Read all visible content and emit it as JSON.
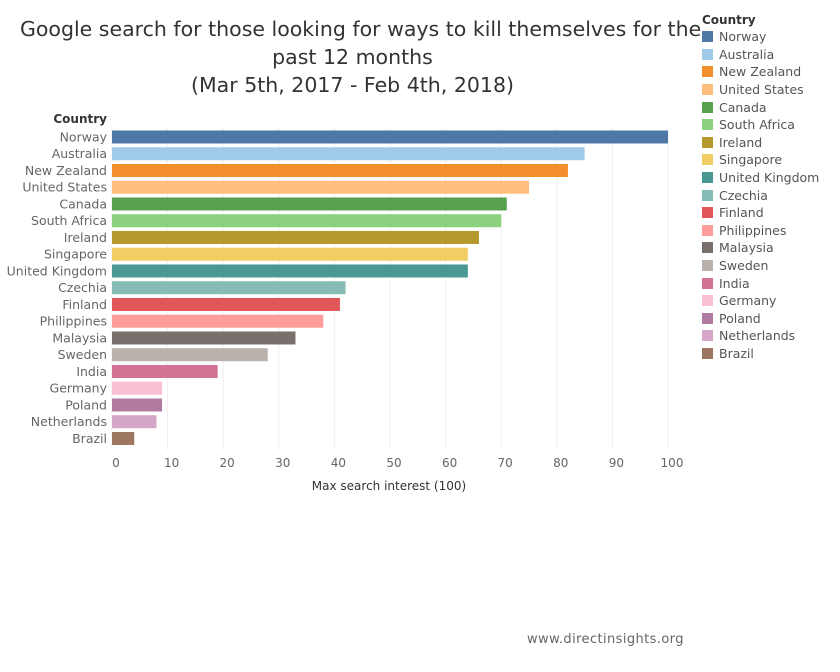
{
  "chart_data": {
    "type": "bar",
    "orientation": "horizontal",
    "title": "Google search for those looking for ways to kill themselves for the",
    "title_line2": "past 12 months",
    "subtitle": "(Mar 5th, 2017 - Feb 4th, 2018)",
    "ylabel": "Country",
    "xlabel": "Max search interest (100)",
    "xlim": [
      0,
      100
    ],
    "xticks": [
      0,
      10,
      20,
      30,
      40,
      50,
      60,
      70,
      80,
      90,
      100
    ],
    "grid": true,
    "legend_title": "Country",
    "legend_position": "right",
    "categories": [
      "Norway",
      "Australia",
      "New Zealand",
      "United States",
      "Canada",
      "South Africa",
      "Ireland",
      "Singapore",
      "United Kingdom",
      "Czechia",
      "Finland",
      "Philippines",
      "Malaysia",
      "Sweden",
      "India",
      "Germany",
      "Poland",
      "Netherlands",
      "Brazil"
    ],
    "values": [
      100,
      85,
      82,
      75,
      71,
      70,
      66,
      64,
      64,
      42,
      41,
      38,
      33,
      28,
      19,
      9,
      9,
      8,
      4
    ],
    "colors": [
      "#4e79a7",
      "#a0cbe8",
      "#f28e2b",
      "#ffbe7d",
      "#59a14f",
      "#8cd17d",
      "#b6992d",
      "#f1ce63",
      "#499894",
      "#86bcb6",
      "#e15759",
      "#ff9d9a",
      "#79706e",
      "#bab0ac",
      "#d37295",
      "#fabfd2",
      "#b07aa1",
      "#d4a6c8",
      "#9d7660"
    ]
  },
  "footer": "www.directinsights.org"
}
